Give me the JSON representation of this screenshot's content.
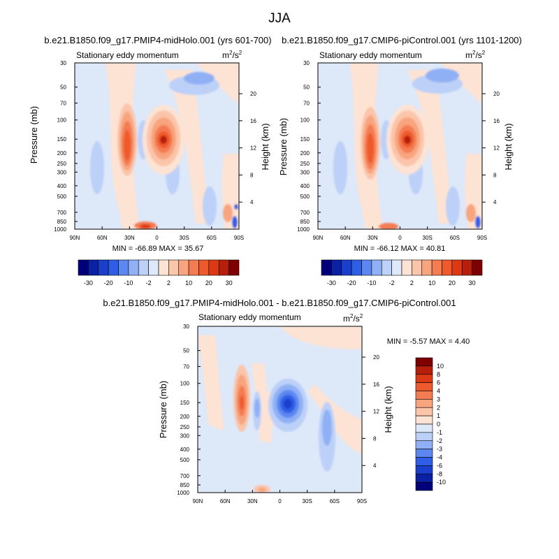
{
  "figure_title": "JJA",
  "panels": [
    {
      "id": "p1",
      "title": "b.e21.B1850.f09_g17.PMIP4-midHolo.001 (yrs 601-700)",
      "subtitle": "Stationary eddy momentum",
      "units_base": "m",
      "units_sup1": "2",
      "units_mid": "/s",
      "units_sup2": "2",
      "stats": "MIN = -66.89  MAX =  35.67",
      "ylabel": "Pressure (mb)",
      "ylabel_right": "Height (km)"
    },
    {
      "id": "p2",
      "title": "b.e21.B1850.f09_g17.CMIP6-piControl.001 (yrs 1101-1200)",
      "subtitle": "Stationary eddy momentum",
      "units_base": "m",
      "units_sup1": "2",
      "units_mid": "/s",
      "units_sup2": "2",
      "stats": "MIN = -66.12  MAX =  40.81",
      "ylabel": "Pressure (mb)",
      "ylabel_right": "Height (km)"
    },
    {
      "id": "p3",
      "title": "b.e21.B1850.f09_g17.PMIP4-midHolo.001 - b.e21.B1850.f09_g17.CMIP6-piControl.001",
      "subtitle": "Stationary eddy momentum",
      "units_base": "m",
      "units_sup1": "2",
      "units_mid": "/s",
      "units_sup2": "2",
      "stats": "MIN =  -5.57  MAX =   4.40",
      "ylabel": "Pressure (mb)",
      "ylabel_right": "Height (km)"
    }
  ],
  "colorbar_main": {
    "labels": [
      "-30",
      "-20",
      "-10",
      "-2",
      "2",
      "10",
      "20",
      "30"
    ],
    "colors": [
      "#00007a",
      "#0a21a6",
      "#1a3fcc",
      "#2e5ee6",
      "#5c87f0",
      "#8fb0f5",
      "#bcd0f8",
      "#dde8f9",
      "#fde3d4",
      "#fbc5aa",
      "#f8a47e",
      "#f47c52",
      "#ee5a2c",
      "#dc3a14",
      "#b81f0a",
      "#7f0000"
    ]
  },
  "colorbar_diff": {
    "labels": [
      "10",
      "8",
      "6",
      "4",
      "3",
      "2",
      "1",
      "0",
      "-1",
      "-2",
      "-3",
      "-4",
      "-6",
      "-8",
      "-10"
    ],
    "colors": [
      "#7f0000",
      "#b81f0a",
      "#dc3a14",
      "#ee5a2c",
      "#f47c52",
      "#f8a47e",
      "#fbc5aa",
      "#fde3d4",
      "#dde8f9",
      "#bcd0f8",
      "#8fb0f5",
      "#5c87f0",
      "#2e5ee6",
      "#1a3fcc",
      "#0a21a6",
      "#00007a"
    ]
  },
  "chart_data": [
    {
      "type": "heatmap",
      "title": "b.e21.B1850.f09_g17.PMIP4-midHolo.001 (yrs 601-700)",
      "variable": "Stationary eddy momentum (m2/s2)",
      "xlabel": "",
      "ylabel": "Pressure (mb)",
      "ylabel_right": "Height (km)",
      "x_ticks": [
        "90N",
        "60N",
        "30N",
        "0",
        "30S",
        "60S",
        "90S"
      ],
      "y_ticks": [
        30,
        50,
        70,
        100,
        150,
        200,
        250,
        300,
        400,
        500,
        700,
        850,
        1000
      ],
      "y_right_ticks": [
        4,
        8,
        12,
        16,
        20
      ],
      "min": -66.89,
      "max": 35.67,
      "features": [
        {
          "lat": -5,
          "p": 150,
          "value": 35,
          "desc": "strong positive core"
        },
        {
          "lat": 28,
          "p": 160,
          "value": 20,
          "desc": "positive band"
        },
        {
          "lat": 12,
          "p": 150,
          "value": -10,
          "desc": "negative"
        },
        {
          "lat": 72,
          "p": 250,
          "value": -8,
          "desc": "negative"
        },
        {
          "lat": -55,
          "p": 70,
          "value": -10,
          "desc": "upper negative"
        },
        {
          "lat": -80,
          "p": 850,
          "value": -30,
          "desc": "surface negative"
        }
      ]
    },
    {
      "type": "heatmap",
      "title": "b.e21.B1850.f09_g17.CMIP6-piControl.001 (yrs 1101-1200)",
      "variable": "Stationary eddy momentum (m2/s2)",
      "xlabel": "",
      "ylabel": "Pressure (mb)",
      "ylabel_right": "Height (km)",
      "x_ticks": [
        "90N",
        "60N",
        "30N",
        "0",
        "30S",
        "60S",
        "90S"
      ],
      "y_ticks": [
        30,
        50,
        70,
        100,
        150,
        200,
        250,
        300,
        400,
        500,
        700,
        850,
        1000
      ],
      "y_right_ticks": [
        4,
        8,
        12,
        16,
        20
      ],
      "min": -66.12,
      "max": 40.81,
      "features": [
        {
          "lat": -3,
          "p": 150,
          "value": 40,
          "desc": "strong positive core"
        },
        {
          "lat": 27,
          "p": 170,
          "value": 20,
          "desc": "positive band"
        },
        {
          "lat": 12,
          "p": 150,
          "value": -10,
          "desc": "negative"
        },
        {
          "lat": -55,
          "p": 60,
          "value": -10,
          "desc": "upper negative"
        },
        {
          "lat": -80,
          "p": 850,
          "value": -30,
          "desc": "surface negative"
        }
      ]
    },
    {
      "type": "heatmap",
      "title": "b.e21.B1850.f09_g17.PMIP4-midHolo.001 - b.e21.B1850.f09_g17.CMIP6-piControl.001",
      "variable": "Stationary eddy momentum (m2/s2)",
      "xlabel": "",
      "ylabel": "Pressure (mb)",
      "ylabel_right": "Height (km)",
      "x_ticks": [
        "90N",
        "60N",
        "30N",
        "0",
        "30S",
        "60S",
        "90S"
      ],
      "y_ticks": [
        30,
        50,
        70,
        100,
        150,
        200,
        250,
        300,
        400,
        500,
        700,
        850,
        1000
      ],
      "y_right_ticks": [
        4,
        8,
        12,
        16,
        20
      ],
      "min": -5.57,
      "max": 4.4,
      "features": [
        {
          "lat": 42,
          "p": 150,
          "value": 4,
          "desc": "positive"
        },
        {
          "lat": -10,
          "p": 150,
          "value": -5,
          "desc": "negative core"
        },
        {
          "lat": 25,
          "p": 170,
          "value": -3,
          "desc": "negative"
        },
        {
          "lat": -55,
          "p": 250,
          "value": -3,
          "desc": "negative band"
        },
        {
          "lat": 20,
          "p": 1000,
          "value": 2,
          "desc": "surface positive"
        }
      ]
    }
  ]
}
